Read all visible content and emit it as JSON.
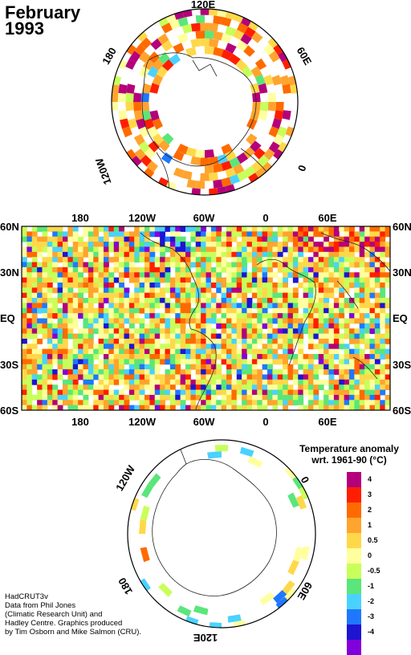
{
  "title": {
    "month": "February",
    "year": "1993"
  },
  "top_map": {
    "labels": {
      "top": "120E",
      "right": "60E",
      "bottom_right": "0",
      "left": "180",
      "bottom_left": "120W"
    }
  },
  "middle_map": {
    "top_lon_labels": [
      "180",
      "120W",
      "60W",
      "0",
      "60E"
    ],
    "bottom_lon_labels": [
      "180",
      "120W",
      "60W",
      "0",
      "60E"
    ],
    "lat_labels": [
      "60N",
      "30N",
      "EQ",
      "30S",
      "60S"
    ]
  },
  "bottom_map": {
    "labels": {
      "left": "120W",
      "right": "0",
      "bottom_left": "180",
      "bottom_right": "60E",
      "bottom": "120E"
    }
  },
  "legend": {
    "title_line1": "Temperature anomaly",
    "title_line2": "wrt. 1961-90  (°C)",
    "ticks": [
      "4",
      "3",
      "2",
      "1",
      "0.5",
      "0",
      "-0.5",
      "-1",
      "-2",
      "-3",
      "-4"
    ],
    "colors": [
      "#b4007a",
      "#ff1e00",
      "#ff6a00",
      "#ffa42e",
      "#ffd84a",
      "#ffff9e",
      "#c8ff5a",
      "#5ae67a",
      "#4ad2ff",
      "#1e78ff",
      "#1e14d2",
      "#8200dc"
    ]
  },
  "credits": [
    "HadCRUT3v",
    "Data from Phil Jones",
    "(Climatic Research Unit) and",
    "Hadley Centre.  Graphics produced",
    "by Tim Osborn and Mike Salmon (CRU)."
  ]
}
